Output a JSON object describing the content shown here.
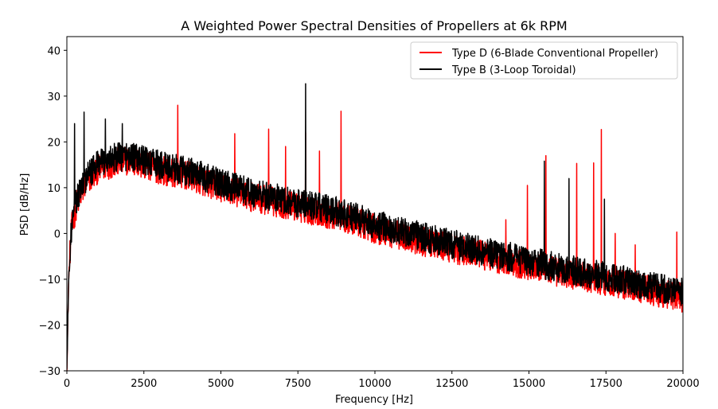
{
  "chart_data": {
    "type": "line",
    "title": "A Weighted Power Spectral Densities of Propellers at 6k RPM",
    "xlabel": "Frequency [Hz]",
    "ylabel": "PSD [dB/Hz]",
    "xlim": [
      0,
      20000
    ],
    "ylim": [
      -30,
      43
    ],
    "xticks": [
      0,
      2500,
      5000,
      7500,
      10000,
      12500,
      15000,
      17500,
      20000
    ],
    "yticks": [
      -30,
      -20,
      -10,
      0,
      10,
      20,
      30,
      40
    ],
    "grid": false,
    "legend_position": "top-right",
    "series": [
      {
        "name": "Type D (6-Blade Conventional Propeller)",
        "color": "#ff0000",
        "baseline_x": [
          0,
          60,
          150,
          300,
          600,
          1000,
          1500,
          2000,
          2500,
          3000,
          4000,
          5000,
          6000,
          7000,
          8000,
          9000,
          10000,
          12000,
          14000,
          16000,
          18000,
          20000
        ],
        "baseline_y": [
          -30,
          -10,
          0,
          5,
          10,
          13,
          14.5,
          15,
          14,
          13,
          11.5,
          9,
          7,
          5.5,
          4,
          2.5,
          0,
          -3.5,
          -6.5,
          -9.5,
          -12,
          -15
        ],
        "noise_amplitude": 4,
        "peaks": [
          {
            "x": 3600,
            "y": 28
          },
          {
            "x": 5450,
            "y": 21.8
          },
          {
            "x": 6550,
            "y": 22.8
          },
          {
            "x": 7100,
            "y": 19
          },
          {
            "x": 7750,
            "y": 22
          },
          {
            "x": 8200,
            "y": 18
          },
          {
            "x": 8900,
            "y": 26.7
          },
          {
            "x": 14250,
            "y": 3
          },
          {
            "x": 14950,
            "y": 10.5
          },
          {
            "x": 15550,
            "y": 17
          },
          {
            "x": 16550,
            "y": 15.3
          },
          {
            "x": 17100,
            "y": 15.4
          },
          {
            "x": 17350,
            "y": 22.7
          },
          {
            "x": 17800,
            "y": 0
          },
          {
            "x": 18450,
            "y": -2.5
          },
          {
            "x": 19800,
            "y": 0.3
          }
        ]
      },
      {
        "name": "Type B (3-Loop Toroidal)",
        "color": "#000000",
        "baseline_x": [
          0,
          60,
          150,
          300,
          600,
          1000,
          1500,
          2000,
          2500,
          3000,
          4000,
          5000,
          6000,
          7000,
          8000,
          9000,
          10000,
          12000,
          14000,
          16000,
          18000,
          20000
        ],
        "baseline_y": [
          -30,
          -10,
          0,
          6,
          11,
          14,
          15.5,
          16,
          15,
          14,
          12.5,
          10,
          8,
          6.5,
          5,
          3.5,
          1,
          -2.5,
          -5.5,
          -8.5,
          -11,
          -14
        ],
        "noise_amplitude": 4,
        "peaks": [
          {
            "x": 250,
            "y": 24
          },
          {
            "x": 560,
            "y": 26.5
          },
          {
            "x": 1250,
            "y": 25
          },
          {
            "x": 1800,
            "y": 24
          },
          {
            "x": 7750,
            "y": 32.7
          },
          {
            "x": 15500,
            "y": 15.8
          },
          {
            "x": 16300,
            "y": 12
          },
          {
            "x": 17450,
            "y": 7.5
          }
        ]
      }
    ]
  }
}
